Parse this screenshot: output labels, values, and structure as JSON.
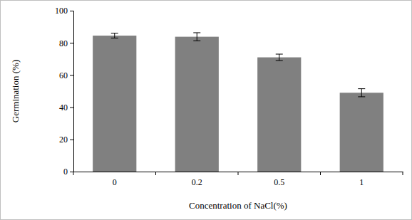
{
  "chart_data": {
    "type": "bar",
    "categories": [
      "0",
      "0.2",
      "0.5",
      "1"
    ],
    "values": [
      84.5,
      83.8,
      71.0,
      49.0
    ],
    "errors": [
      1.5,
      2.5,
      2.0,
      2.5
    ],
    "color": "#808080",
    "x_label": "Concentration  of NaCl(%)",
    "y_label": "Germination  (%)",
    "ylim": [
      0,
      100
    ],
    "yticks": [
      0,
      20,
      40,
      60,
      80,
      100
    ],
    "grid": false
  }
}
